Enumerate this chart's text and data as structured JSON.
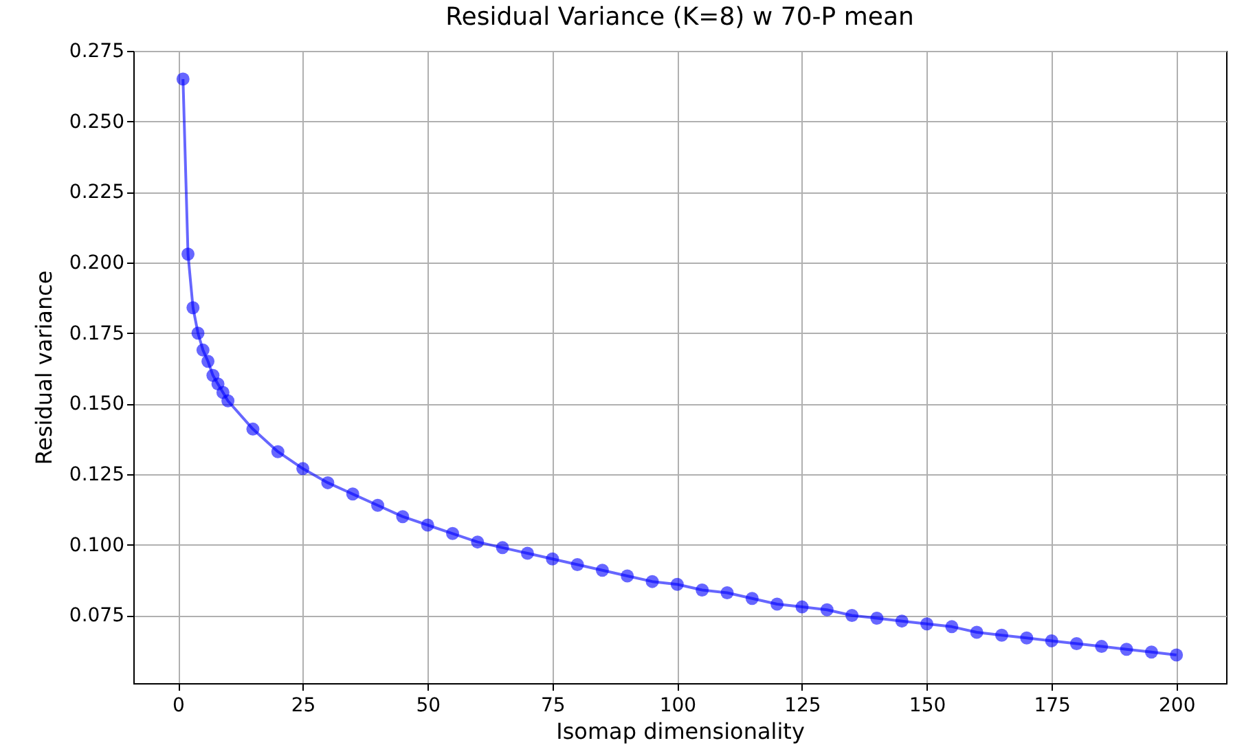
{
  "chart_data": {
    "type": "line",
    "title": "Residual Variance (K=8) w 70-P mean",
    "xlabel": "Isomap dimensionality",
    "ylabel": "Residual variance",
    "x": [
      1,
      2,
      3,
      4,
      5,
      6,
      7,
      8,
      9,
      10,
      15,
      20,
      25,
      30,
      35,
      40,
      45,
      50,
      55,
      60,
      65,
      70,
      75,
      80,
      85,
      90,
      95,
      100,
      105,
      110,
      115,
      120,
      125,
      130,
      135,
      140,
      145,
      150,
      155,
      160,
      165,
      170,
      175,
      180,
      185,
      190,
      195,
      200
    ],
    "series": [
      {
        "color": "#0000ff",
        "values": [
          0.265,
          0.203,
          0.184,
          0.175,
          0.169,
          0.165,
          0.16,
          0.157,
          0.154,
          0.151,
          0.141,
          0.133,
          0.127,
          0.122,
          0.118,
          0.114,
          0.11,
          0.107,
          0.104,
          0.101,
          0.099,
          0.097,
          0.095,
          0.093,
          0.091,
          0.089,
          0.087,
          0.086,
          0.084,
          0.083,
          0.081,
          0.079,
          0.078,
          0.077,
          0.075,
          0.074,
          0.073,
          0.072,
          0.071,
          0.069,
          0.068,
          0.067,
          0.066,
          0.065,
          0.064,
          0.063,
          0.062,
          0.061
        ]
      }
    ],
    "xlim": [
      -8.95,
      209.95
    ],
    "ylim": [
      0.051,
      0.275
    ],
    "xticks": [
      0,
      25,
      50,
      75,
      100,
      125,
      150,
      175,
      200
    ],
    "yticks": [
      0.075,
      {
        "value": 0.1,
        "label": "0.100"
      },
      0.125,
      {
        "value": 0.15,
        "label": "0.150"
      },
      0.175,
      {
        "value": 0.2,
        "label": "0.200"
      },
      0.225,
      {
        "value": 0.25,
        "label": "0.250"
      },
      0.275
    ],
    "grid": true,
    "marker": "circle",
    "line_style": "solid"
  }
}
